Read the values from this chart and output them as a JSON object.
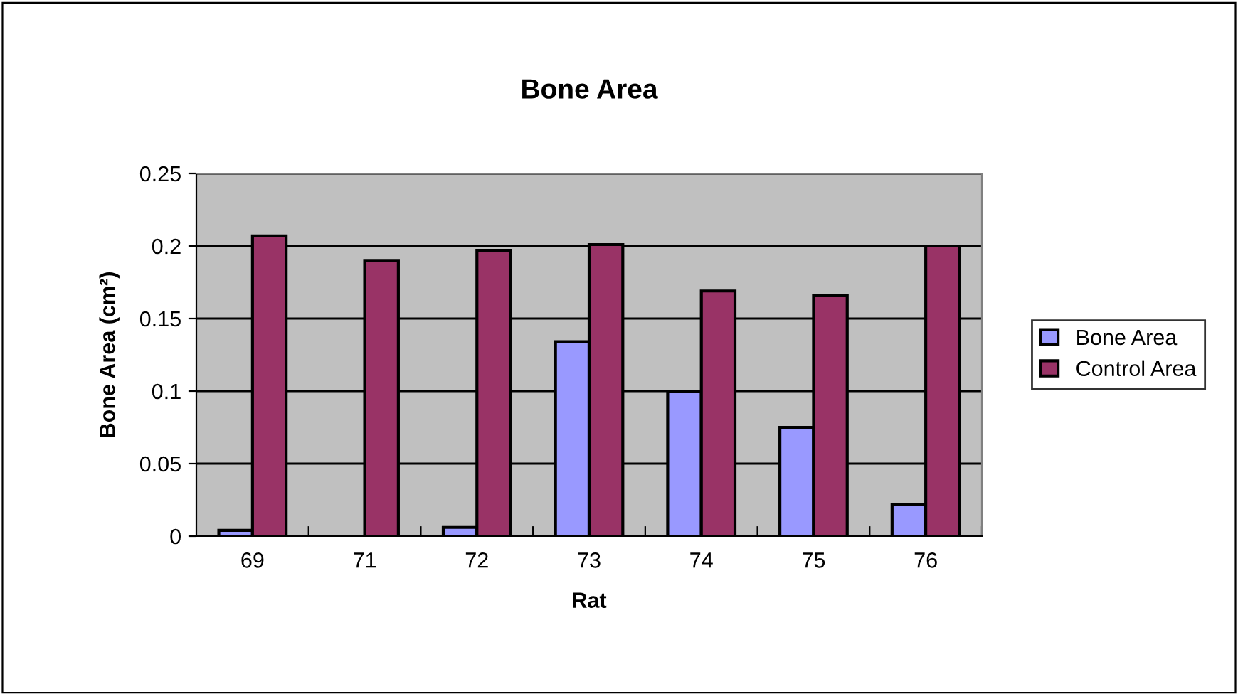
{
  "chart_data": {
    "type": "bar",
    "title": "Bone Area",
    "xlabel": "Rat",
    "ylabel": "Bone Area (cm²)",
    "categories": [
      "69",
      "71",
      "72",
      "73",
      "74",
      "75",
      "76"
    ],
    "series": [
      {
        "name": "Bone Area",
        "color": "#9999ff",
        "values": [
          0.004,
          null,
          0.006,
          0.134,
          0.1,
          0.075,
          0.022
        ]
      },
      {
        "name": "Control Area",
        "color": "#993366",
        "values": [
          0.207,
          0.19,
          0.197,
          0.201,
          0.169,
          0.166,
          0.2
        ]
      }
    ],
    "ylim": [
      0,
      0.25
    ],
    "yticks": [
      0,
      {
        "value": 0.05,
        "label": "0.05"
      },
      {
        "value": 0.1,
        "label": "0.1"
      },
      {
        "value": 0.15,
        "label": "0.15"
      },
      {
        "value": 0.2,
        "label": "0.2"
      },
      {
        "value": 0.25,
        "label": "0.25"
      }
    ],
    "grid": "y",
    "legend": "right"
  }
}
